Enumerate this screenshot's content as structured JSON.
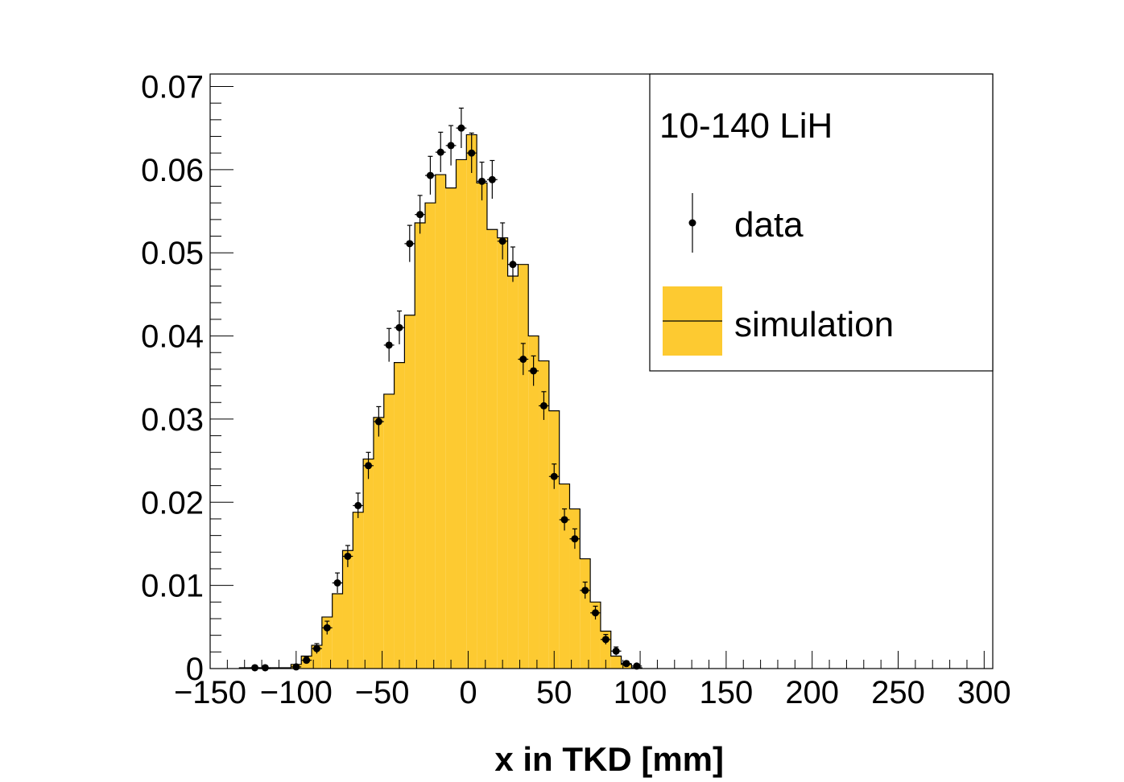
{
  "chart_data": {
    "type": "histogram",
    "title": "",
    "xlabel": "x in TKD [mm]",
    "ylabel": "",
    "xlim": [
      -150,
      305
    ],
    "ylim": [
      0,
      0.0715
    ],
    "x_ticks": [
      -150,
      -100,
      -50,
      0,
      50,
      100,
      150,
      200,
      250,
      300
    ],
    "x_tick_labels": [
      "−150",
      "−100",
      "−50",
      "0",
      "50",
      "100",
      "150",
      "200",
      "250",
      "300"
    ],
    "y_ticks": [
      0,
      0.01,
      0.02,
      0.03,
      0.04,
      0.05,
      0.06,
      0.07
    ],
    "y_tick_labels": [
      "0",
      "0.01",
      "0.02",
      "0.03",
      "0.04",
      "0.05",
      "0.06",
      "0.07"
    ],
    "grid": false,
    "legend": {
      "placement": "top-right",
      "header": "10-140 LiH",
      "entries": [
        "data",
        "simulation"
      ]
    },
    "colors": {
      "simulation_fill": "#fdca31",
      "line": "#000000"
    },
    "bin_edges": [
      -133,
      -127,
      -121,
      -115,
      -109,
      -103,
      -97,
      -91,
      -85,
      -79,
      -73,
      -67,
      -61,
      -55,
      -49,
      -43,
      -37,
      -31,
      -25,
      -19,
      -13,
      -7,
      -1,
      5,
      11,
      17,
      23,
      29,
      35,
      41,
      47,
      53,
      59,
      65,
      71,
      77,
      83,
      89,
      95,
      101
    ],
    "series": [
      {
        "name": "simulation",
        "kind": "step",
        "values": [
          0.0001,
          0.0001,
          0.0,
          0.0001,
          0.0001,
          0.0005,
          0.0015,
          0.0028,
          0.0062,
          0.009,
          0.0142,
          0.0188,
          0.0252,
          0.0302,
          0.033,
          0.0368,
          0.0425,
          0.0536,
          0.056,
          0.0594,
          0.0578,
          0.0612,
          0.0642,
          0.0584,
          0.0528,
          0.0518,
          0.0472,
          0.0486,
          0.04,
          0.037,
          0.031,
          0.0222,
          0.0192,
          0.0132,
          0.008,
          0.0045,
          0.0015,
          0.0005,
          0.0001
        ]
      },
      {
        "name": "data",
        "kind": "points",
        "x": [
          -124,
          -118,
          -100,
          -94,
          -88,
          -82,
          -76,
          -70,
          -64,
          -58,
          -52,
          -46,
          -40,
          -34,
          -28,
          -22,
          -16,
          -10,
          -4,
          2,
          8,
          14,
          20,
          26,
          32,
          38,
          44,
          50,
          56,
          62,
          68,
          74,
          80,
          86,
          92,
          98
        ],
        "y": [
          0.0001,
          0.0001,
          0.0002,
          0.001,
          0.0024,
          0.0049,
          0.0103,
          0.0135,
          0.0196,
          0.0244,
          0.0297,
          0.0389,
          0.041,
          0.0511,
          0.0546,
          0.0593,
          0.0621,
          0.0629,
          0.065,
          0.062,
          0.0586,
          0.0588,
          0.0514,
          0.0486,
          0.0372,
          0.0358,
          0.0316,
          0.0231,
          0.0179,
          0.0156,
          0.0094,
          0.0067,
          0.0035,
          0.0021,
          0.0006,
          0.0003
        ],
        "yerr": [
          0.0001,
          0.0001,
          0.0002,
          0.0004,
          0.0006,
          0.0008,
          0.0012,
          0.0013,
          0.0015,
          0.0016,
          0.0018,
          0.002,
          0.002,
          0.0022,
          0.0023,
          0.0023,
          0.0024,
          0.0024,
          0.0024,
          0.0024,
          0.0023,
          0.0023,
          0.0022,
          0.0021,
          0.0019,
          0.0018,
          0.0017,
          0.0015,
          0.0013,
          0.0012,
          0.001,
          0.0008,
          0.0006,
          0.0005,
          0.0003,
          0.0002
        ],
        "xerr": 3
      }
    ]
  }
}
